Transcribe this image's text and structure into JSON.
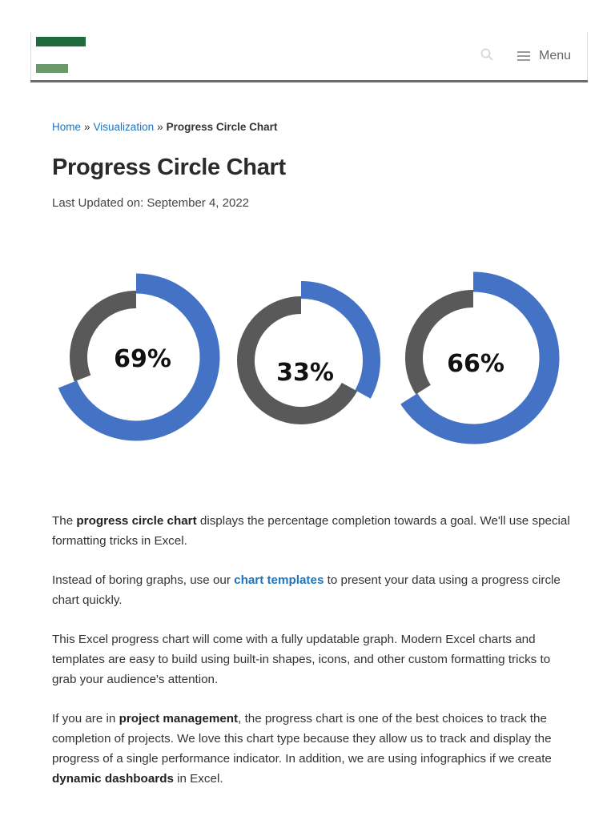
{
  "header": {
    "menu_label": "Menu",
    "icons": {
      "search": "search-icon",
      "menu": "hamburger-icon"
    },
    "logo_colors": {
      "primary": "#1f6b3e",
      "secondary": "#6a9a6a"
    }
  },
  "breadcrumb": {
    "home": "Home",
    "separator": "»",
    "section": "Visualization",
    "current": "Progress Circle Chart"
  },
  "article": {
    "title": "Progress Circle Chart",
    "last_updated": "Last Updated on: September 4, 2022",
    "p1": {
      "t1": "The ",
      "b1": "progress circle chart",
      "t2": " displays the percentage completion towards a goal. We'll use special formatting tricks in Excel."
    },
    "p2": {
      "t1": "Instead of boring graphs, use our ",
      "link": "chart templates",
      "t2": " to present your data using a progress circle chart quickly."
    },
    "p3": "This Excel progress chart will come with a fully updatable graph. Modern Excel charts and templates are easy to build using built-in shapes, icons, and other custom formatting tricks to grab your audience's attention.",
    "p4": {
      "t1": "If you are in ",
      "b1": "project management",
      "t2": ", the progress chart is one of the best choices to track the completion of projects. We love this chart type because they allow us to track and display the progress of a single performance indicator. In addition, we are using infographics if we create ",
      "b2": "dynamic dashboards",
      "t3": " in Excel."
    }
  },
  "chart_data": {
    "type": "pie",
    "colors": {
      "progress": "#4472c4",
      "remainder": "#595959"
    },
    "series": [
      {
        "values": [
          69,
          31
        ],
        "label": "69%"
      },
      {
        "values": [
          33,
          67
        ],
        "label": "33%"
      },
      {
        "values": [
          66,
          34
        ],
        "label": "66%"
      }
    ]
  }
}
